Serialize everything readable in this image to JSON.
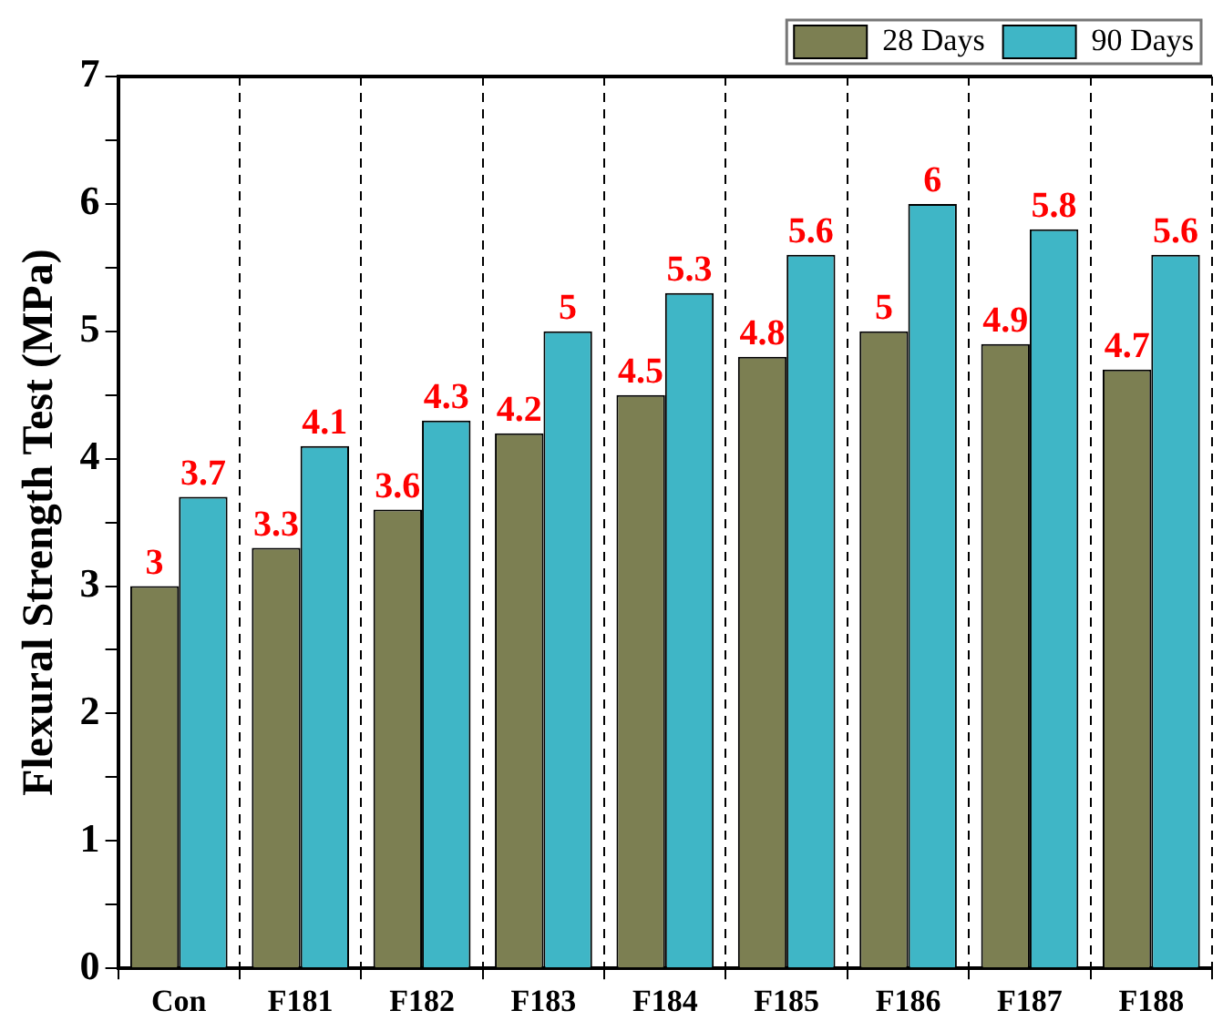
{
  "chart_data": {
    "type": "bar",
    "ylabel": "Flexural Strength Test (MPa)",
    "categories": [
      "Con",
      "F181",
      "F182",
      "F183",
      "F184",
      "F185",
      "F186",
      "F187",
      "F188"
    ],
    "series": [
      {
        "name": "28 Days",
        "color": "#7c7f52",
        "values": [
          3,
          3.3,
          3.6,
          4.2,
          4.5,
          4.8,
          5,
          4.9,
          4.7
        ]
      },
      {
        "name": "90 Days",
        "color": "#3fb6c6",
        "values": [
          3.7,
          4.1,
          4.3,
          5,
          5.3,
          5.6,
          6,
          5.8,
          5.6
        ]
      }
    ],
    "ylim": [
      0,
      7
    ],
    "yticks": [
      0,
      {
        "value": 0.5,
        "label": null
      },
      1,
      {
        "value": 1.5,
        "label": null
      },
      2,
      {
        "value": 2.5,
        "label": null
      },
      3,
      {
        "value": 3.5,
        "label": null
      },
      4,
      {
        "value": 4.5,
        "label": null
      },
      5,
      {
        "value": 5.5,
        "label": null
      },
      6,
      {
        "value": 6.5,
        "label": null
      },
      7
    ],
    "grid": "x",
    "legend": "top right",
    "data_labels": true
  }
}
